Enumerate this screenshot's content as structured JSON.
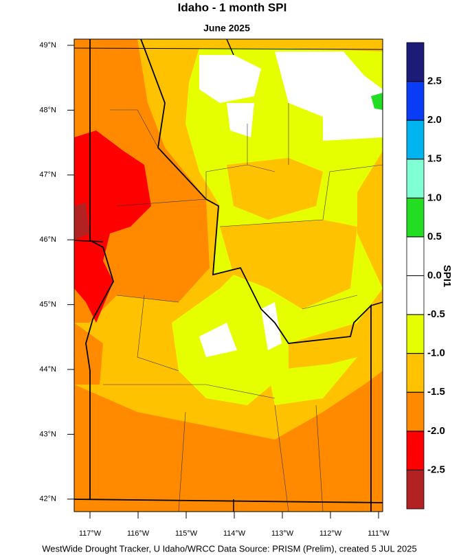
{
  "title": "Idaho - 1 month SPI",
  "subtitle": "June 2025",
  "latitude_labels": [
    "49°N",
    "48°N",
    "47°N",
    "46°N",
    "45°N",
    "44°N",
    "43°N",
    "42°N"
  ],
  "longitude_labels": [
    "117°W",
    "116°W",
    "115°W",
    "114°W",
    "113°W",
    "112°W",
    "111°W"
  ],
  "colorbar": {
    "label": "SPI1",
    "ticks": [
      "2.5",
      "2.0",
      "1.5",
      "1.0",
      "0.5",
      "0.0",
      "-0.5",
      "-1.0",
      "-1.5",
      "-2.0",
      "-2.5"
    ],
    "colors": [
      "#1c1c78",
      "#0a3cf5",
      "#00b4f0",
      "#80ffd4",
      "#22dd22",
      "#ffffff",
      "#ffffff",
      "#e6ff00",
      "#ffc200",
      "#ff8a00",
      "#ff0000",
      "#b22222"
    ]
  },
  "footer": "WestWide Drought Tracker, U Idaho/WRCC Data Source: PRISM (Prelim), created  5 JUL 2025"
}
